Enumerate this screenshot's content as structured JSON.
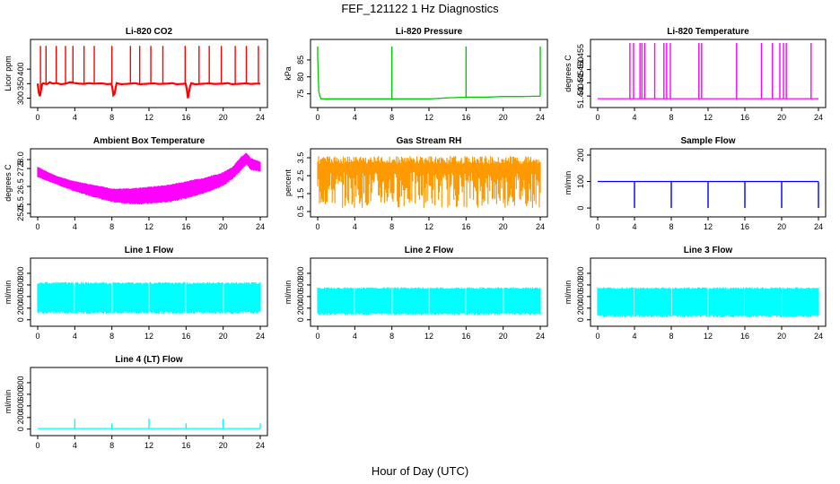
{
  "figure": {
    "title": "FEF_121122  1 Hz Diagnostics",
    "xlabel": "Hour of Day (UTC)"
  },
  "chart_data": [
    {
      "type": "line",
      "title": "Li-820 CO2",
      "ylabel": "Licor ppm",
      "color": "#ff0000",
      "xlim": [
        0,
        24
      ],
      "ylim": [
        280,
        490
      ],
      "xticks": [
        0,
        4,
        8,
        12,
        16,
        20,
        24
      ],
      "yticks": [
        300,
        350,
        400
      ],
      "pattern": "baseline ~350 with frequent spikes to ~480",
      "series": [
        {
          "x": [
            0,
            0.2,
            0.5,
            1,
            1.3,
            1.6,
            2,
            2.5,
            3,
            3.5,
            4,
            4.5,
            5,
            5.5,
            6,
            7,
            7.5,
            8,
            8.2,
            8.5,
            9,
            10,
            10.5,
            11,
            12,
            12.5,
            13,
            14,
            14.5,
            15,
            16,
            16.2,
            16.5,
            17,
            18,
            18.5,
            19,
            20,
            20.5,
            21,
            22,
            22.5,
            23,
            23.5,
            24
          ],
          "y": [
            350,
            300,
            352,
            348,
            355,
            350,
            352,
            348,
            350,
            355,
            352,
            350,
            349,
            352,
            350,
            351,
            348,
            350,
            300,
            352,
            348,
            350,
            352,
            348,
            350,
            351,
            349,
            350,
            352,
            348,
            350,
            300,
            352,
            348,
            350,
            351,
            349,
            350,
            352,
            348,
            350,
            351,
            349,
            350,
            350
          ]
        }
      ],
      "spikes_x": [
        0.3,
        0.9,
        2.0,
        3.0,
        3.8,
        5.0,
        6.1,
        8.0,
        10.0,
        11.0,
        12.2,
        13.5,
        15.9,
        17.4,
        18.5,
        19.8,
        21.3,
        22.5,
        23.8
      ],
      "spike_top": 480
    },
    {
      "type": "line",
      "title": "Li-820 Pressure",
      "ylabel": "kPa",
      "color": "#00cc00",
      "xlim": [
        0,
        24
      ],
      "ylim": [
        72,
        90
      ],
      "xticks": [
        0,
        4,
        8,
        12,
        16,
        20,
        24
      ],
      "yticks": [
        75,
        80,
        85
      ],
      "pattern": "baseline ~73.5-74 with spikes to ~89 near hours 0, 8, 16, 24",
      "series": [
        {
          "x": [
            0,
            0.1,
            0.3,
            1,
            2,
            4,
            6,
            8,
            8.1,
            8.3,
            10,
            12,
            14,
            16,
            16.1,
            16.3,
            18,
            20,
            22,
            24
          ],
          "y": [
            86,
            76,
            73.5,
            73.5,
            73.5,
            73.5,
            73.5,
            73.5,
            73.5,
            73.5,
            73.5,
            73.5,
            73.8,
            74,
            74,
            74,
            74,
            74.2,
            74.2,
            74.3
          ]
        }
      ],
      "spikes_x": [
        0.0,
        8.0,
        16.0,
        24.0
      ],
      "spike_top": 89
    },
    {
      "type": "line",
      "title": "Li-820 Temperature",
      "ylabel": "degrees C",
      "color": "#ff00ff",
      "xlim": [
        0,
        24
      ],
      "ylim": [
        51.437,
        51.46
      ],
      "xticks": [
        0,
        4,
        8,
        12,
        16,
        20,
        24
      ],
      "yticks": [
        51.44,
        51.445,
        51.45,
        51.455
      ],
      "ytick_labels": [
        "51.440",
        "51.445",
        "51.450",
        "51.455"
      ],
      "pattern": "baseline ~51.439 with jumps to top of range",
      "series": [
        {
          "x": [
            0,
            24
          ],
          "y": [
            51.439,
            51.439
          ]
        }
      ],
      "spikes_x": [
        3.5,
        3.9,
        4.6,
        4.8,
        5.1,
        6.2,
        7.2,
        7.5,
        7.9,
        11.0,
        11.3,
        15.1,
        17.8,
        19.0,
        19.8,
        20.2,
        20.5,
        23.2
      ],
      "spike_top": 51.46
    },
    {
      "type": "area",
      "title": "Ambient Box Temperature",
      "ylabel": "degrees C",
      "color": "#ff00ff",
      "xlim": [
        0,
        24
      ],
      "ylim": [
        25.0,
        28.4
      ],
      "xticks": [
        0,
        4,
        8,
        12,
        16,
        20,
        24
      ],
      "yticks": [
        25.0,
        25.5,
        26.5,
        27.5,
        28.0
      ],
      "ytick_labels": [
        "25.0",
        "25.5",
        "26.5",
        "27.5",
        "28.0"
      ],
      "series": [
        {
          "name": "upper",
          "x": [
            0,
            2,
            4,
            6,
            8,
            10,
            12,
            14,
            16,
            18,
            20,
            21,
            22,
            22.5,
            23,
            24
          ],
          "y": [
            27.6,
            27.1,
            26.8,
            26.6,
            26.4,
            26.4,
            26.5,
            26.6,
            26.8,
            27.0,
            27.3,
            27.6,
            28.2,
            28.4,
            28.1,
            27.9
          ]
        },
        {
          "name": "lower",
          "x": [
            0,
            2,
            4,
            6,
            8,
            10,
            12,
            14,
            16,
            18,
            20,
            21,
            22,
            22.5,
            23,
            24
          ],
          "y": [
            27.0,
            26.6,
            26.2,
            25.9,
            25.6,
            25.5,
            25.5,
            25.6,
            25.8,
            26.1,
            26.5,
            26.9,
            27.4,
            27.7,
            27.4,
            27.3
          ]
        }
      ]
    },
    {
      "type": "area",
      "title": "Gas Stream RH",
      "ylabel": "percent",
      "color": "#ff9900",
      "xlim": [
        0,
        24
      ],
      "ylim": [
        0.4,
        3.8
      ],
      "xticks": [
        0,
        4,
        8,
        12,
        16,
        20,
        24
      ],
      "yticks": [
        0.5,
        1.5,
        2.5,
        3.5
      ],
      "series": [
        {
          "name": "upper",
          "x": [
            0,
            24
          ],
          "y": [
            3.6,
            3.6
          ]
        },
        {
          "name": "lower",
          "x": [
            0,
            24
          ],
          "y": [
            0.7,
            0.7
          ]
        }
      ]
    },
    {
      "type": "line",
      "title": "Sample Flow",
      "ylabel": "ml/min",
      "color": "#0000ff",
      "xlim": [
        0,
        24
      ],
      "ylim": [
        -20,
        210
      ],
      "xticks": [
        0,
        4,
        8,
        12,
        16,
        20,
        24
      ],
      "yticks": [
        0,
        100,
        200
      ],
      "pattern": "steady ~100 with dips to 0 every 4 hours",
      "series": [
        {
          "x": [
            0,
            24
          ],
          "y": [
            100,
            100
          ]
        }
      ],
      "dips_x": [
        4,
        8,
        12,
        16,
        20,
        24
      ],
      "dip_bottom": 0
    },
    {
      "type": "area",
      "title": "Line 1 Flow",
      "ylabel": "ml/min",
      "color": "#00ffff",
      "xlim": [
        0,
        24
      ],
      "ylim": [
        -50,
        1000
      ],
      "xticks": [
        0,
        4,
        8,
        12,
        16,
        20,
        24
      ],
      "yticks": [
        0,
        200,
        400,
        600,
        800
      ],
      "series": [
        {
          "name": "upper",
          "x": [
            0,
            24
          ],
          "y": [
            650,
            650
          ]
        },
        {
          "name": "lower",
          "x": [
            0,
            24
          ],
          "y": [
            100,
            100
          ]
        }
      ],
      "gaps_x": [
        4,
        8,
        12,
        16,
        20
      ]
    },
    {
      "type": "area",
      "title": "Line 2 Flow",
      "ylabel": "ml/min",
      "color": "#00ffff",
      "xlim": [
        0,
        24
      ],
      "ylim": [
        -50,
        1000
      ],
      "xticks": [
        0,
        4,
        8,
        12,
        16,
        20,
        24
      ],
      "yticks": [
        0,
        200,
        400,
        600,
        800
      ],
      "series": [
        {
          "name": "upper",
          "x": [
            0,
            24
          ],
          "y": [
            560,
            560
          ]
        },
        {
          "name": "lower",
          "x": [
            0,
            24
          ],
          "y": [
            80,
            80
          ]
        }
      ],
      "gaps_x": [
        4,
        8,
        12,
        16,
        20
      ]
    },
    {
      "type": "area",
      "title": "Line 3 Flow",
      "ylabel": "ml/min",
      "color": "#00ffff",
      "xlim": [
        0,
        24
      ],
      "ylim": [
        -50,
        1000
      ],
      "xticks": [
        0,
        4,
        8,
        12,
        16,
        20,
        24
      ],
      "yticks": [
        0,
        200,
        400,
        600,
        800
      ],
      "series": [
        {
          "name": "upper",
          "x": [
            0,
            24
          ],
          "y": [
            560,
            560
          ]
        },
        {
          "name": "lower",
          "x": [
            0,
            24
          ],
          "y": [
            40,
            40
          ]
        }
      ],
      "gaps_x": [
        4,
        8,
        12,
        16,
        20
      ]
    },
    {
      "type": "line",
      "title": "Line 4 (LT) Flow",
      "ylabel": "ml/min",
      "color": "#00ffff",
      "xlim": [
        0,
        24
      ],
      "ylim": [
        -50,
        1000
      ],
      "xticks": [
        0,
        4,
        8,
        12,
        16,
        20,
        24
      ],
      "yticks": [
        0,
        200,
        400,
        600,
        800
      ],
      "pattern": "near 0 with small spikes every 4 hours",
      "series": [
        {
          "x": [
            0,
            24
          ],
          "y": [
            10,
            10
          ]
        }
      ],
      "spikes_x": [
        4,
        8,
        12,
        16,
        20,
        24
      ],
      "spike_heights": [
        180,
        100,
        180,
        100,
        180,
        100
      ]
    }
  ]
}
